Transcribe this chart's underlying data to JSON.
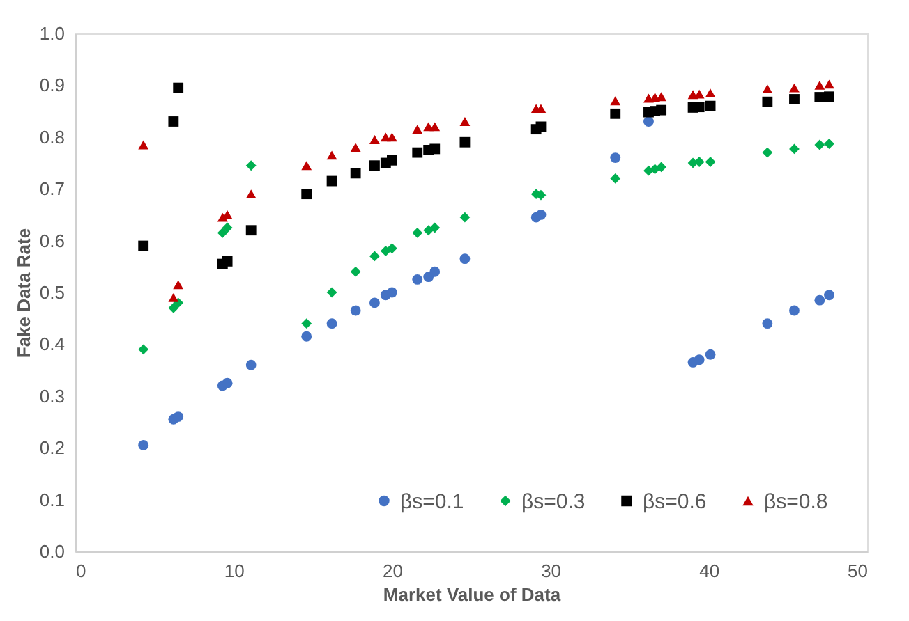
{
  "chart_data": {
    "type": "scatter",
    "xlabel": "Market Value of Data",
    "ylabel": "Fake Data Rate",
    "x": [
      4.3,
      6.2,
      6.5,
      9.3,
      9.6,
      11.1,
      14.6,
      16.2,
      17.7,
      18.9,
      19.6,
      20.0,
      21.6,
      22.3,
      22.7,
      24.6,
      29.1,
      29.4,
      34.1,
      36.2,
      36.6,
      37.0,
      39.0,
      39.4,
      40.1,
      43.7,
      45.4,
      47.0,
      47.6
    ],
    "series": [
      {
        "name": "βs=0.1",
        "color": "#4472c4",
        "marker": "circle",
        "values": [
          0.205,
          0.255,
          0.26,
          0.32,
          0.325,
          0.36,
          0.415,
          0.44,
          0.465,
          0.48,
          0.495,
          0.5,
          0.525,
          0.53,
          0.54,
          0.565,
          0.645,
          0.65,
          0.76,
          0.83,
          null,
          null,
          0.365,
          0.37,
          0.38,
          0.44,
          0.465,
          0.485,
          0.495
        ]
      },
      {
        "name": "βs=0.3",
        "color": "#00b050",
        "marker": "diamond",
        "values": [
          0.39,
          0.47,
          0.48,
          0.615,
          0.625,
          0.745,
          0.44,
          0.5,
          0.54,
          0.57,
          0.58,
          0.585,
          0.615,
          0.62,
          0.625,
          0.645,
          0.69,
          0.688,
          0.72,
          0.735,
          0.738,
          0.742,
          0.75,
          0.752,
          0.752,
          0.77,
          0.777,
          0.785,
          0.787
        ]
      },
      {
        "name": "βs=0.6",
        "color": "#000000",
        "marker": "square",
        "values": [
          0.59,
          0.83,
          0.895,
          0.555,
          0.56,
          0.62,
          0.69,
          0.715,
          0.73,
          0.745,
          0.75,
          0.755,
          0.77,
          0.775,
          0.777,
          0.79,
          0.815,
          0.82,
          0.845,
          0.848,
          0.85,
          0.852,
          0.857,
          0.858,
          0.86,
          0.868,
          0.873,
          0.877,
          0.878
        ]
      },
      {
        "name": "βs=0.8",
        "color": "#c00000",
        "marker": "triangle",
        "values": [
          0.785,
          0.49,
          0.515,
          0.645,
          0.65,
          0.69,
          0.745,
          0.765,
          0.78,
          0.795,
          0.8,
          0.8,
          0.815,
          0.82,
          0.82,
          0.83,
          0.855,
          0.855,
          0.87,
          0.875,
          0.877,
          0.878,
          0.882,
          0.883,
          0.885,
          0.893,
          0.895,
          0.9,
          0.902
        ]
      }
    ],
    "xlim": [
      0,
      50
    ],
    "xticks": [
      0,
      10,
      20,
      30,
      40,
      50
    ],
    "ylim": [
      0,
      1
    ],
    "yticks": [
      {
        "value": 0,
        "label": "0.0"
      },
      {
        "value": 0.1,
        "label": "0.1"
      },
      {
        "value": 0.2,
        "label": "0.2"
      },
      {
        "value": 0.3,
        "label": "0.3"
      },
      {
        "value": 0.4,
        "label": "0.4"
      },
      {
        "value": 0.5,
        "label": "0.5"
      },
      {
        "value": 0.6,
        "label": "0.6"
      },
      {
        "value": 0.7,
        "label": "0.7"
      },
      {
        "value": 0.8,
        "label": "0.8"
      },
      {
        "value": 0.9,
        "label": "0.9"
      },
      {
        "value": 1,
        "label": "1.0"
      }
    ],
    "grid": false,
    "legend": "bottom right"
  }
}
